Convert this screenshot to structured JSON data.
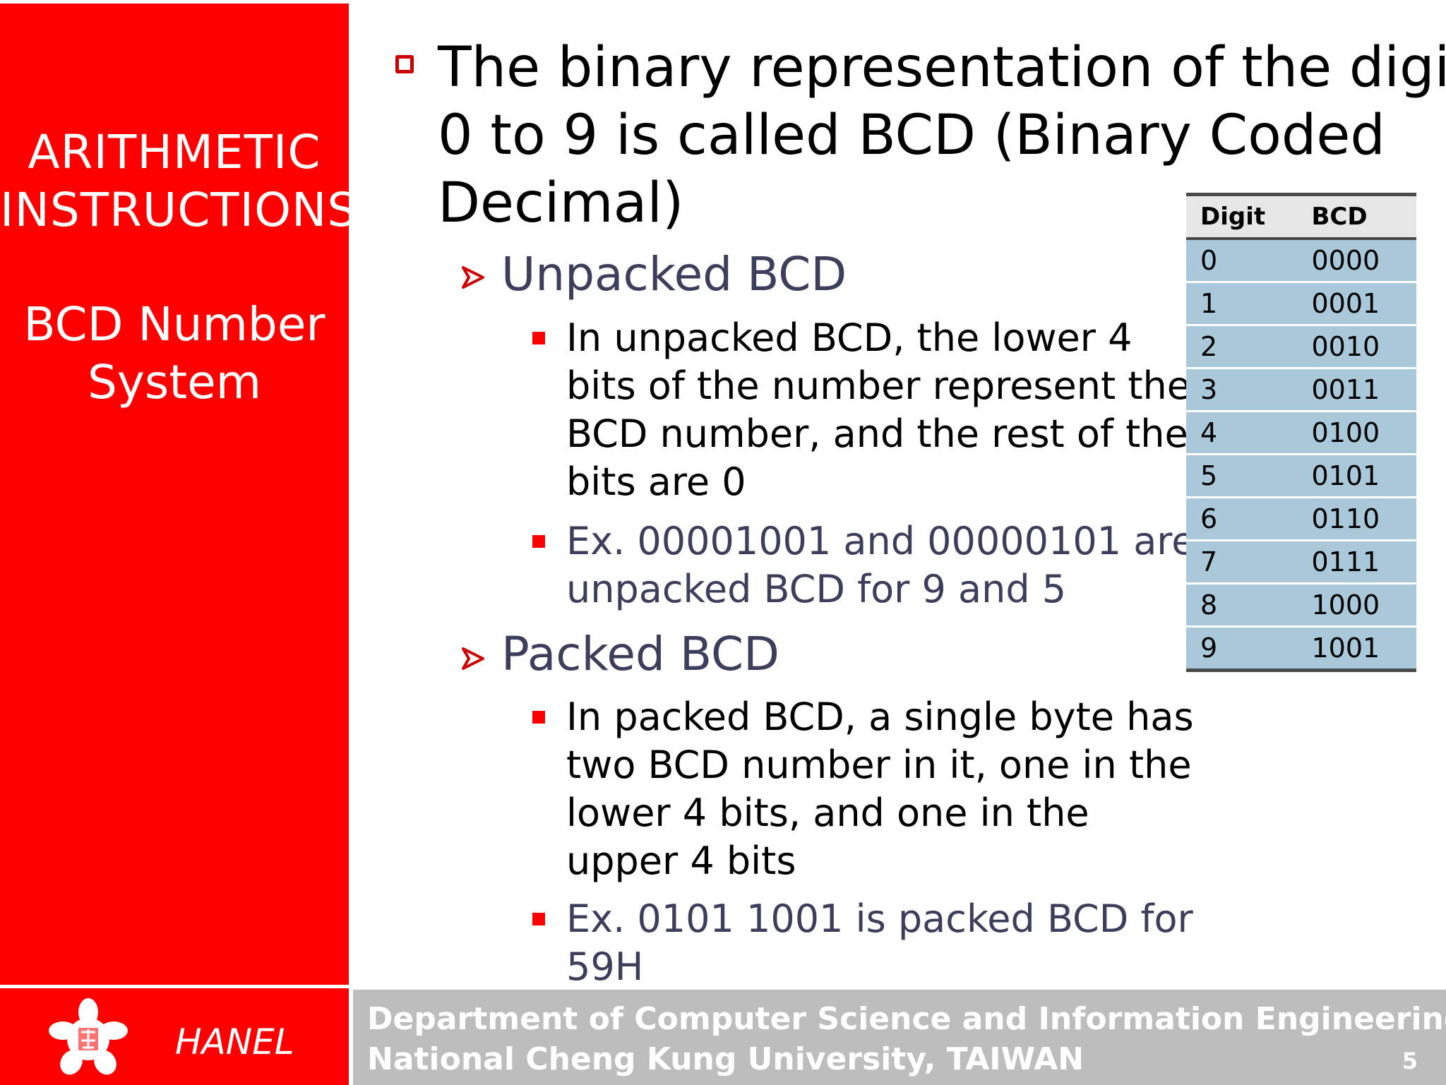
{
  "sidebar": {
    "title_line1": "ARITHMETIC",
    "title_line2": "INSTRUCTIONS",
    "subtitle_line1": "BCD Number",
    "subtitle_line2": "System"
  },
  "main": {
    "intro_line1": "The binary representation of the digits",
    "intro_line2": "0 to 9 is called BCD (Binary Coded",
    "intro_line3": "Decimal)",
    "unpacked": {
      "heading": "Unpacked BCD",
      "desc_lines": [
        "In unpacked BCD, the lower 4",
        "bits of the number represent the",
        "BCD number, and the rest of the",
        "bits are 0"
      ],
      "example_lines": [
        "Ex. 00001001 and 00000101 are",
        "unpacked BCD for 9 and 5"
      ]
    },
    "packed": {
      "heading": "Packed BCD",
      "desc_lines": [
        "In packed BCD, a single byte has",
        "two BCD number in it, one in the",
        "lower 4 bits, and one in the",
        "upper 4 bits"
      ],
      "example_lines": [
        "Ex. 0101 1001 is packed BCD for",
        "59H"
      ]
    }
  },
  "table": {
    "headers": [
      "Digit",
      "BCD"
    ],
    "rows": [
      [
        "0",
        "0000"
      ],
      [
        "1",
        "0001"
      ],
      [
        "2",
        "0010"
      ],
      [
        "3",
        "0011"
      ],
      [
        "4",
        "0100"
      ],
      [
        "5",
        "0101"
      ],
      [
        "6",
        "0110"
      ],
      [
        "7",
        "0111"
      ],
      [
        "8",
        "1000"
      ],
      [
        "9",
        "1001"
      ]
    ]
  },
  "footer": {
    "author": "HANEL",
    "dept": "Department of Computer Science and Information Engineering",
    "univ": "National Cheng Kung University, TAIWAN",
    "page": "5"
  },
  "colors": {
    "accent_red": "#ff0000",
    "table_row": "#a9c8d9",
    "footer_gray": "#bdbdbd",
    "subtext": "#3d3d5c"
  },
  "icons": {
    "main_bullet": "hollow-square-bullet-icon",
    "sub_bullet": "arrowhead-bullet-icon",
    "item_bullet": "filled-square-bullet-icon",
    "logo": "university-logo-icon"
  }
}
